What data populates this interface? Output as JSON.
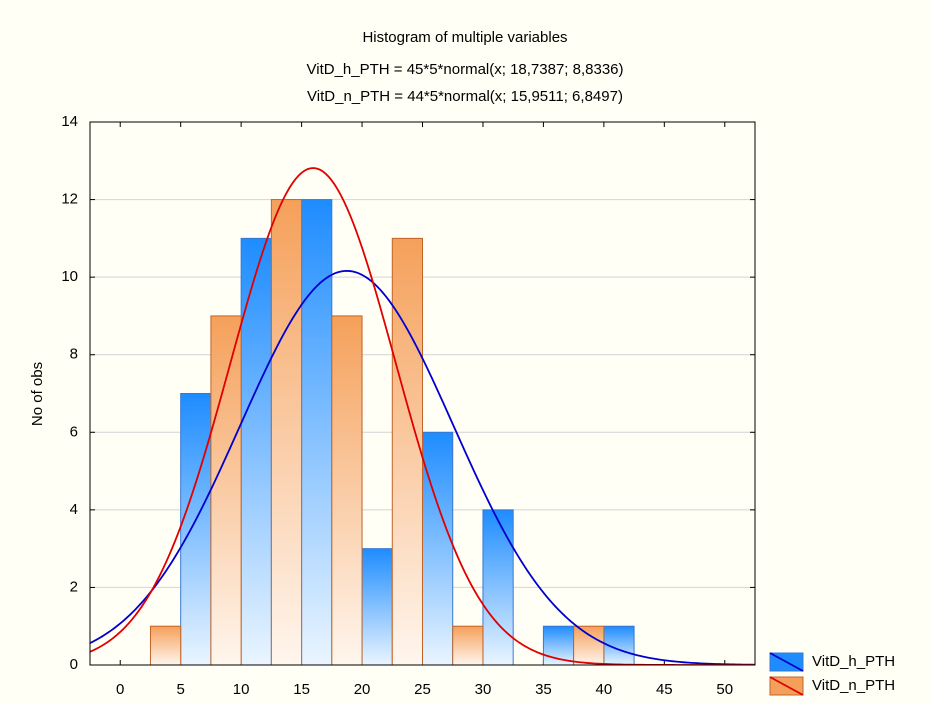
{
  "chart_data": {
    "type": "histogram",
    "title": "Histogram of multiple variables",
    "subtitles": [
      "VitD_h_PTH = 45*5*normal(x; 18,7387; 8,8336)",
      "VitD_n_PTH = 44*5*normal(x; 15,9511; 6,8497)"
    ],
    "y_label": "No of obs",
    "bins": [
      0,
      5,
      10,
      15,
      20,
      25,
      30,
      35,
      40,
      45,
      50
    ],
    "series": [
      {
        "name": "VitD_h_PTH",
        "color": "#1e8cff",
        "curve_color": "#0000d0",
        "values": [
          0,
          7,
          11,
          12,
          3,
          6,
          4,
          1,
          1,
          0
        ],
        "fit": {
          "count": 45,
          "bin_width": 5,
          "mean": 18.7387,
          "sd": 8.8336
        }
      },
      {
        "name": "VitD_n_PTH",
        "color": "#f5a05a",
        "curve_color": "#e00000",
        "values": [
          1,
          9,
          12,
          9,
          11,
          1,
          0,
          1,
          0,
          0
        ],
        "fit": {
          "count": 44,
          "bin_width": 5,
          "mean": 15.9511,
          "sd": 6.8497
        }
      }
    ],
    "xlim": [
      -2.5,
      52.5
    ],
    "ylim": [
      0,
      14
    ],
    "xticks": [
      0,
      5,
      10,
      15,
      20,
      25,
      30,
      35,
      40,
      45,
      50
    ],
    "yticks": [
      0,
      2,
      4,
      6,
      8,
      10,
      12,
      14
    ],
    "grid": true,
    "legend": "bottom-right"
  }
}
